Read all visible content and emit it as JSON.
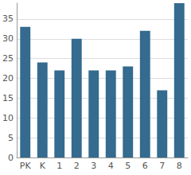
{
  "chart_data": {
    "type": "bar",
    "categories": [
      "PK",
      "K",
      "1",
      "2",
      "3",
      "4",
      "5",
      "6",
      "7",
      "8"
    ],
    "values": [
      33,
      24,
      22,
      30,
      22,
      22,
      23,
      32,
      17,
      39
    ],
    "color": "#346b8e",
    "ylim": [
      0,
      39
    ],
    "yticks": [
      0,
      5,
      10,
      15,
      20,
      25,
      30,
      35
    ],
    "grid": true
  }
}
